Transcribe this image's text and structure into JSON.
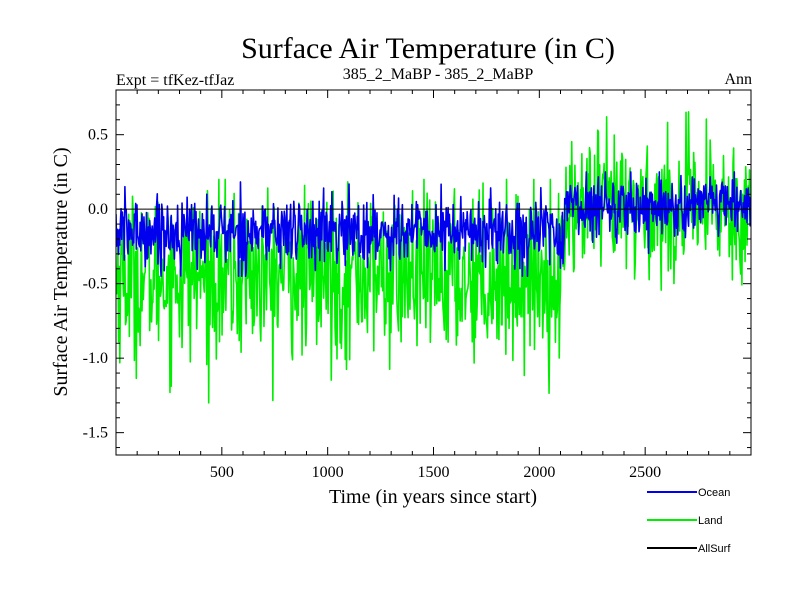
{
  "chart_data": {
    "type": "line",
    "title": "Surface Air Temperature (in C)",
    "subtitle_left": "Expt = tfKez-tfJaz",
    "subtitle_center": "385_2_MaBP - 385_2_MaBP",
    "subtitle_right": "Ann",
    "xlabel": "Time (in years since start)",
    "ylabel": "Surface Air Temperature (in C)",
    "xlim": [
      0,
      3000
    ],
    "ylim": [
      -1.65,
      0.8
    ],
    "x_ticks": [
      500,
      1000,
      1500,
      2000,
      2500
    ],
    "x_tick_labels": [
      "500",
      "1000",
      "1500",
      "2000",
      "2500"
    ],
    "y_ticks": [
      0.5,
      0.0,
      -0.5,
      -1.0,
      -1.5
    ],
    "y_tick_labels": [
      "0.5",
      "0.0",
      "-0.5",
      "-1.0",
      "-1.5"
    ],
    "zero_line": 0.0,
    "grid": false,
    "legend_position": "bottom-right",
    "series": [
      {
        "name": "Land",
        "color": "#00ee00",
        "segments": [
          {
            "x_start": 0,
            "x_end": 2120,
            "mean": -0.45,
            "range": [
              -1.3,
              0.2
            ]
          },
          {
            "x_start": 2120,
            "x_end": 3000,
            "mean": 0.0,
            "range": [
              -0.55,
              0.78
            ]
          }
        ]
      },
      {
        "name": "Ocean",
        "color": "#0000ee",
        "segments": [
          {
            "x_start": 0,
            "x_end": 2120,
            "mean": -0.15,
            "range": [
              -0.45,
              0.2
            ]
          },
          {
            "x_start": 2120,
            "x_end": 3000,
            "mean": 0.02,
            "range": [
              -0.3,
              0.25
            ]
          }
        ]
      },
      {
        "name": "AllSurf",
        "color": "#000000",
        "segments": []
      }
    ],
    "legend": [
      {
        "label": "Ocean",
        "color": "#0000ee"
      },
      {
        "label": "Land",
        "color": "#00ee00"
      },
      {
        "label": "AllSurf",
        "color": "#000000"
      }
    ]
  }
}
